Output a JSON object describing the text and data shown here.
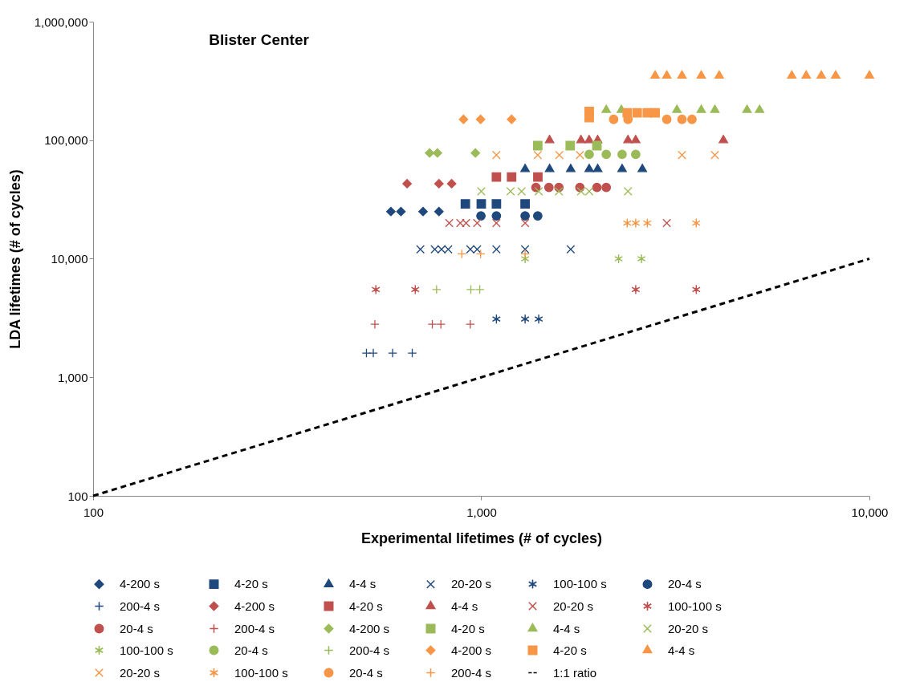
{
  "chart_data": {
    "type": "scatter",
    "title": "Blister Center",
    "xlabel": "Experimental lifetimes (# of cycles)",
    "ylabel": "LDA lifetimes (# of cycles)",
    "log": "xy",
    "xlim": [
      100,
      10000
    ],
    "xticks": [
      {
        "value": 100,
        "label": "100"
      },
      {
        "value": 1000,
        "label": "1,000"
      },
      {
        "value": 10000,
        "label": "10,000"
      }
    ],
    "ylim": [
      100,
      1000000
    ],
    "yticks": [
      {
        "value": 100,
        "label": "100"
      },
      {
        "value": 1000,
        "label": "1,000"
      },
      {
        "value": 10000,
        "label": "10,000"
      },
      {
        "value": 100000,
        "label": "100,000"
      },
      {
        "value": 1000000,
        "label": "1,000,000"
      }
    ],
    "grid": false,
    "legend": "bottom",
    "series": [
      {
        "name": "4-200 s",
        "color": "#1f497d",
        "marker": "diamond",
        "x": [
          585,
          621,
          708,
          778
        ],
        "values": [
          25000,
          25000,
          25000,
          25000
        ]
      },
      {
        "name": "4-20 s",
        "color": "#1f497d",
        "marker": "square",
        "x": [
          910,
          1000,
          1094,
          1297
        ],
        "values": [
          29000,
          29000,
          29000,
          29000
        ]
      },
      {
        "name": "4-4 s",
        "color": "#1f497d",
        "marker": "triangle",
        "x": [
          1297,
          1500,
          1700,
          1897,
          1995,
          2306,
          2600
        ],
        "values": [
          57000,
          57000,
          57000,
          57000,
          57000,
          57000,
          57000
        ]
      },
      {
        "name": "20-20 s",
        "color": "#1f497d",
        "marker": "cross",
        "x": [
          697,
          759,
          790,
          822,
          937,
          976,
          1094,
          1297,
          1700
        ],
        "values": [
          12000,
          12000,
          12000,
          12000,
          12000,
          12000,
          12000,
          12000,
          12000
        ]
      },
      {
        "name": "100-100 s",
        "color": "#1f497d",
        "x": [
          1094,
          1297,
          1406
        ],
        "values": [
          3100,
          3100,
          3100
        ]
      },
      {
        "name": "20-4 s",
        "color": "#1f497d",
        "marker": "circle",
        "x": [
          998,
          1094,
          1297,
          1398
        ],
        "values": [
          23000,
          23000,
          23000,
          23000
        ]
      },
      {
        "name": "200-4 s",
        "color": "#1f497d",
        "marker": "plus",
        "x": [
          506,
          527,
          591,
          664
        ],
        "values": [
          1600,
          1600,
          1600,
          1600
        ]
      },
      {
        "name": "4-200 s",
        "color": "#c0504d",
        "marker": "diamond",
        "x": [
          644,
          778,
          839
        ],
        "values": [
          43000,
          43000,
          43000
        ]
      },
      {
        "name": "4-20 s",
        "color": "#c0504d",
        "marker": "square",
        "x": [
          1094,
          1197,
          1399
        ],
        "values": [
          49000,
          49000,
          49000
        ]
      },
      {
        "name": "4-4 s",
        "color": "#c0504d",
        "marker": "triangle",
        "x": [
          1500,
          1807,
          1897,
          1995,
          2388,
          2500,
          4206
        ],
        "values": [
          100000,
          100000,
          100000,
          100000,
          100000,
          100000,
          100000
        ]
      },
      {
        "name": "20-20 s",
        "color": "#c0504d",
        "marker": "cross",
        "x": [
          827,
          883,
          914,
          976,
          1094,
          1297,
          3006
        ],
        "values": [
          20000,
          20000,
          20000,
          20000,
          20000,
          20000,
          20000
        ]
      },
      {
        "name": "100-100 s",
        "color": "#c0504d",
        "x": [
          535,
          676,
          2500,
          3580
        ],
        "values": [
          5500,
          5500,
          5500,
          5500
        ]
      },
      {
        "name": "20-4 s",
        "color": "#c0504d",
        "marker": "circle",
        "x": [
          1383,
          1494,
          1585,
          1795,
          1986,
          2099
        ],
        "values": [
          40000,
          40000,
          40000,
          40000,
          40000,
          40000
        ]
      },
      {
        "name": "200-4 s",
        "color": "#c0504d",
        "marker": "plus",
        "x": [
          532,
          748,
          787,
          937
        ],
        "values": [
          2800,
          2800,
          2800,
          2800
        ]
      },
      {
        "name": "4-200 s",
        "color": "#9bbb59",
        "marker": "diamond",
        "x": [
          736,
          771,
          966
        ],
        "values": [
          78000,
          78000,
          78000
        ]
      },
      {
        "name": "4-20 s",
        "color": "#9bbb59",
        "marker": "square",
        "x": [
          1398,
          1695,
          1986
        ],
        "values": [
          90000,
          90000,
          90000
        ]
      },
      {
        "name": "4-4 s",
        "color": "#9bbb59",
        "marker": "triangle",
        "x": [
          2099,
          2296,
          3192,
          3688,
          3998,
          4838,
          5213
        ],
        "values": [
          180000,
          180000,
          180000,
          180000,
          180000,
          180000,
          180000
        ]
      },
      {
        "name": "20-20 s",
        "color": "#9bbb59",
        "marker": "cross",
        "x": [
          1000,
          1190,
          1270,
          1406,
          1585,
          1807,
          1897,
          2388
        ],
        "values": [
          37000,
          37000,
          37000,
          37000,
          37000,
          37000,
          37000,
          37000
        ]
      },
      {
        "name": "100-100 s",
        "color": "#9bbb59",
        "x": [
          1297,
          2259,
          2587
        ],
        "values": [
          10000,
          10000,
          10000
        ]
      },
      {
        "name": "20-4 s",
        "color": "#9bbb59",
        "marker": "circle",
        "x": [
          1897,
          2099,
          2306,
          2500
        ],
        "values": [
          76000,
          76000,
          76000,
          76000
        ]
      },
      {
        "name": "200-4 s",
        "color": "#9bbb59",
        "marker": "plus",
        "x": [
          767,
          940,
          991
        ],
        "values": [
          5500,
          5500,
          5500
        ]
      },
      {
        "name": "4-200 s",
        "color": "#f79646",
        "marker": "diamond",
        "x": [
          900,
          996,
          1197
        ],
        "values": [
          150000,
          150000,
          150000
        ]
      },
      {
        "name": "4-20 s",
        "color": "#f79646",
        "marker": "square",
        "x": [
          1897,
          1897,
          2377,
          2522,
          2678,
          2805
        ],
        "values": [
          155000,
          175000,
          170000,
          170000,
          170000,
          170000
        ]
      },
      {
        "name": "4-4 s",
        "color": "#f79646",
        "marker": "triangle",
        "x": [
          2805,
          3006,
          3289,
          3688,
          4102,
          6310,
          6874,
          7518,
          8185,
          10000
        ],
        "values": [
          350000,
          350000,
          350000,
          350000,
          350000,
          350000,
          350000,
          350000,
          350000,
          350000
        ]
      },
      {
        "name": "20-20 s",
        "color": "#f79646",
        "marker": "cross",
        "x": [
          1094,
          1398,
          1589,
          1795,
          3289,
          3998
        ],
        "values": [
          75000,
          75000,
          75000,
          75000,
          75000,
          75000
        ]
      },
      {
        "name": "100-100 s",
        "color": "#f79646",
        "x": [
          2377,
          2500,
          2678,
          3580
        ],
        "values": [
          20000,
          20000,
          20000,
          20000
        ]
      },
      {
        "name": "20-4 s",
        "color": "#f79646",
        "marker": "circle",
        "x": [
          2193,
          2388,
          3006,
          3289,
          3490
        ],
        "values": [
          150000,
          150000,
          150000,
          150000,
          150000
        ]
      },
      {
        "name": "200-4 s",
        "color": "#f79646",
        "marker": "plus",
        "x": [
          891,
          996,
          1297
        ],
        "values": [
          11000,
          11000,
          11000
        ]
      },
      {
        "name": "1:1 ratio",
        "color": "#000000",
        "type": "line",
        "line_style": "dashed",
        "marker": "none",
        "x": [
          100,
          10000
        ],
        "values": [
          100,
          10000
        ]
      }
    ]
  }
}
